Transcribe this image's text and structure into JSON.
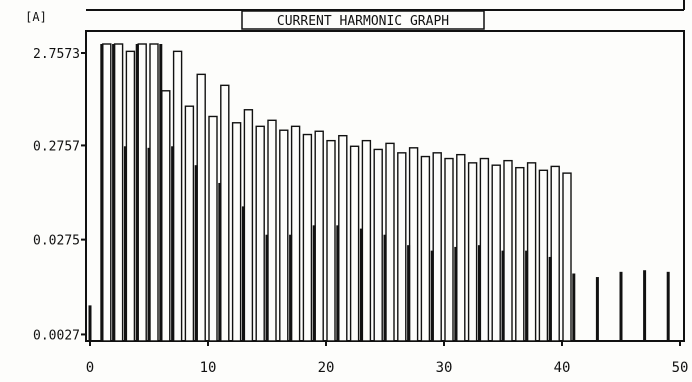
{
  "chart_data": {
    "type": "bar",
    "title": "CURRENT HARMONIC GRAPH",
    "ylabel": "[A]",
    "xlabel": "",
    "yscale": "log",
    "ylim": [
      0.0023,
      3.3
    ],
    "xlim": [
      -1,
      50
    ],
    "yticks": [
      {
        "value": 2.7573,
        "label": "2.7573"
      },
      {
        "value": 0.2757,
        "label": "0.2757"
      },
      {
        "value": 0.0275,
        "label": "0.0275"
      },
      {
        "value": 0.0027,
        "label": "0.0027"
      }
    ],
    "xticks": [
      0,
      10,
      20,
      30,
      40,
      50
    ],
    "clipped_top": 2.7573,
    "series": [
      {
        "style": "outline",
        "points": [
          [
            1,
            3.3
          ],
          [
            2,
            3.3
          ],
          [
            3,
            2.757
          ],
          [
            4,
            3.3
          ],
          [
            5,
            3.3
          ],
          [
            6,
            1.05
          ],
          [
            7,
            2.757
          ],
          [
            8,
            0.72
          ],
          [
            9,
            1.57
          ],
          [
            10,
            0.56
          ],
          [
            11,
            1.2
          ],
          [
            12,
            0.48
          ],
          [
            13,
            0.66
          ],
          [
            14,
            0.44
          ],
          [
            15,
            0.51
          ],
          [
            16,
            0.4
          ],
          [
            17,
            0.44
          ],
          [
            18,
            0.36
          ],
          [
            19,
            0.39
          ],
          [
            20,
            0.31
          ],
          [
            21,
            0.35
          ],
          [
            22,
            0.27
          ],
          [
            23,
            0.31
          ],
          [
            24,
            0.25
          ],
          [
            25,
            0.29
          ],
          [
            26,
            0.23
          ],
          [
            27,
            0.26
          ],
          [
            28,
            0.21
          ],
          [
            29,
            0.23
          ],
          [
            30,
            0.2
          ],
          [
            31,
            0.22
          ],
          [
            32,
            0.18
          ],
          [
            33,
            0.2
          ],
          [
            34,
            0.17
          ],
          [
            35,
            0.19
          ],
          [
            36,
            0.16
          ],
          [
            37,
            0.18
          ],
          [
            38,
            0.15
          ],
          [
            39,
            0.165
          ],
          [
            40,
            0.14
          ]
        ]
      },
      {
        "style": "solid",
        "points": [
          [
            0,
            0.0055
          ],
          [
            1,
            3.3
          ],
          [
            2,
            3.3
          ],
          [
            3,
            0.27
          ],
          [
            4,
            3.3
          ],
          [
            5,
            0.26
          ],
          [
            6,
            3.3
          ],
          [
            7,
            0.27
          ],
          [
            9,
            0.17
          ],
          [
            11,
            0.11
          ],
          [
            13,
            0.062
          ],
          [
            15,
            0.031
          ],
          [
            17,
            0.031
          ],
          [
            19,
            0.039
          ],
          [
            21,
            0.039
          ],
          [
            23,
            0.036
          ],
          [
            25,
            0.031
          ],
          [
            27,
            0.024
          ],
          [
            29,
            0.021
          ],
          [
            31,
            0.023
          ],
          [
            33,
            0.024
          ],
          [
            35,
            0.021
          ],
          [
            37,
            0.021
          ],
          [
            39,
            0.018
          ],
          [
            41,
            0.012
          ],
          [
            43,
            0.011
          ],
          [
            45,
            0.0125
          ],
          [
            47,
            0.013
          ],
          [
            49,
            0.0125
          ]
        ]
      }
    ]
  }
}
